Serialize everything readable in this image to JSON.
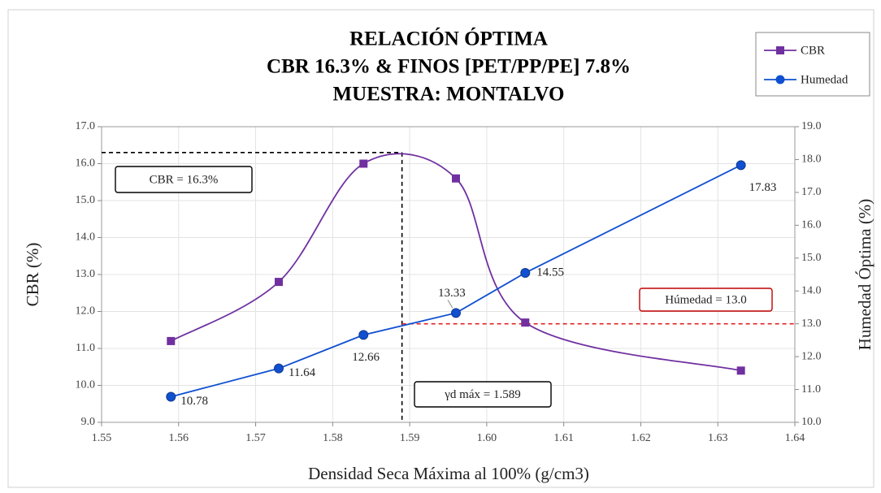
{
  "chart_data": {
    "type": "line",
    "title": [
      "RELACIÓN ÓPTIMA",
      "CBR 16.3% & FINOS [PET/PP/PE] 7.8%",
      "MUESTRA: MONTALVO"
    ],
    "x_label": "Densidad Seca Máxima al 100% (g/cm3)",
    "y_label": "CBR (%)",
    "y2_label": "Humedad Óptima (%)",
    "x": [
      1.559,
      1.573,
      1.584,
      1.596,
      1.605,
      1.633
    ],
    "series": [
      {
        "name": "CBR",
        "color": "#7030a0",
        "marker": "square",
        "smooth": true,
        "values": [
          11.2,
          12.8,
          16.0,
          15.6,
          11.7,
          10.4
        ]
      },
      {
        "name": "Humedad",
        "color": "#0f4fd0",
        "marker": "circle",
        "smooth": false,
        "axis": "y2",
        "values": [
          10.78,
          11.64,
          12.66,
          13.33,
          14.55,
          17.83
        ]
      }
    ],
    "xlim": [
      1.55,
      1.64
    ],
    "xticks": [
      1.55,
      1.56,
      1.57,
      1.58,
      1.59,
      {
        "value": 1.6,
        "label": "1.60"
      },
      1.61,
      1.62,
      1.63,
      1.64
    ],
    "ylim": [
      9,
      17
    ],
    "yticks": [
      {
        "value": 9,
        "label": "9.0"
      },
      {
        "value": 10,
        "label": "10.0"
      },
      {
        "value": 11,
        "label": "11.0"
      },
      {
        "value": 12,
        "label": "12.0"
      },
      {
        "value": 13,
        "label": "13.0"
      },
      {
        "value": 14,
        "label": "14.0"
      },
      {
        "value": 15,
        "label": "15.0"
      },
      {
        "value": 16,
        "label": "16.0"
      },
      {
        "value": 17,
        "label": "17.0"
      }
    ],
    "y2lim": [
      10,
      19
    ],
    "y2ticks": [
      {
        "value": 10,
        "label": "10.0"
      },
      {
        "value": 11,
        "label": "11.0"
      },
      {
        "value": 12,
        "label": "12.0"
      },
      {
        "value": 13,
        "label": "13.0"
      },
      {
        "value": 14,
        "label": "14.0"
      },
      {
        "value": 15,
        "label": "15.0"
      },
      {
        "value": 16,
        "label": "16.0"
      },
      {
        "value": 17,
        "label": "17.0"
      },
      {
        "value": 18,
        "label": "18.0"
      },
      {
        "value": 19,
        "label": "19.0"
      }
    ],
    "grid": true,
    "legend": "top-right",
    "optimum": {
      "x": 1.589,
      "cbr": 16.3,
      "humedad": 13.0
    },
    "annotations": [
      "CBR = 16.3%",
      "Húmedad = 13.0",
      "γd máx = 1.589"
    ]
  }
}
